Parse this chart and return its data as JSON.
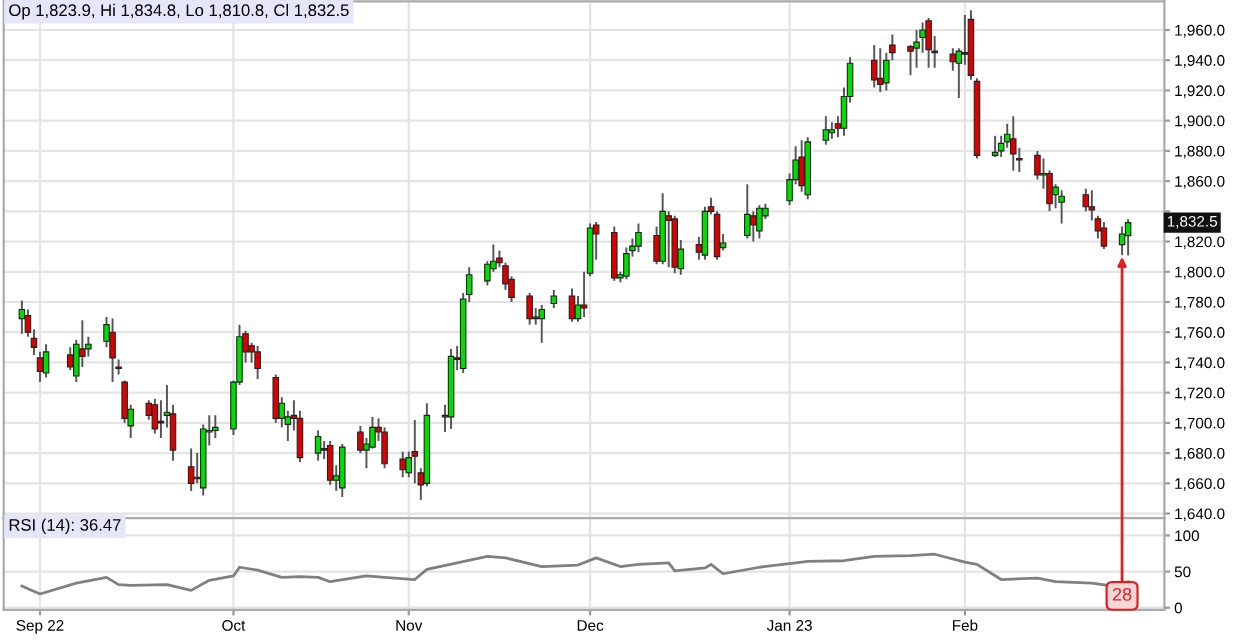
{
  "chart_data": [
    {
      "type": "candlestick",
      "title": "Op 1,823.9, Hi 1,834.8, Lo 1,810.8, Cl 1,832.5",
      "x": [
        "2022-08-29",
        "2022-08-30",
        "2022-08-31",
        "2022-09-01",
        "2022-09-02",
        "2022-09-06",
        "2022-09-07",
        "2022-09-08",
        "2022-09-09",
        "2022-09-12",
        "2022-09-13",
        "2022-09-14",
        "2022-09-15",
        "2022-09-16",
        "2022-09-19",
        "2022-09-20",
        "2022-09-21",
        "2022-09-22",
        "2022-09-23",
        "2022-09-26",
        "2022-09-27",
        "2022-09-28",
        "2022-09-29",
        "2022-09-30",
        "2022-10-03",
        "2022-10-04",
        "2022-10-05",
        "2022-10-06",
        "2022-10-07",
        "2022-10-10",
        "2022-10-11",
        "2022-10-12",
        "2022-10-13",
        "2022-10-14",
        "2022-10-17",
        "2022-10-18",
        "2022-10-19",
        "2022-10-20",
        "2022-10-21",
        "2022-10-24",
        "2022-10-25",
        "2022-10-26",
        "2022-10-27",
        "2022-10-28",
        "2022-10-31",
        "2022-11-01",
        "2022-11-02",
        "2022-11-03",
        "2022-11-04",
        "2022-11-07",
        "2022-11-08",
        "2022-11-09",
        "2022-11-10",
        "2022-11-11",
        "2022-11-14",
        "2022-11-15",
        "2022-11-16",
        "2022-11-17",
        "2022-11-18",
        "2022-11-21",
        "2022-11-22",
        "2022-11-23",
        "2022-11-25",
        "2022-11-28",
        "2022-11-29",
        "2022-11-30",
        "2022-12-01",
        "2022-12-02",
        "2022-12-05",
        "2022-12-06",
        "2022-12-07",
        "2022-12-08",
        "2022-12-09",
        "2022-12-12",
        "2022-12-13",
        "2022-12-14",
        "2022-12-15",
        "2022-12-16",
        "2022-12-19",
        "2022-12-20",
        "2022-12-21",
        "2022-12-22",
        "2022-12-23",
        "2022-12-27",
        "2022-12-28",
        "2022-12-29",
        "2022-12-30",
        "2023-01-03",
        "2023-01-04",
        "2023-01-05",
        "2023-01-06",
        "2023-01-09",
        "2023-01-10",
        "2023-01-11",
        "2023-01-12",
        "2023-01-13",
        "2023-01-17",
        "2023-01-18",
        "2023-01-19",
        "2023-01-20",
        "2023-01-23",
        "2023-01-24",
        "2023-01-25",
        "2023-01-26",
        "2023-01-27",
        "2023-01-30",
        "2023-01-31",
        "2023-02-01",
        "2023-02-02",
        "2023-02-03",
        "2023-02-06",
        "2023-02-07",
        "2023-02-08",
        "2023-02-09",
        "2023-02-10",
        "2023-02-13",
        "2023-02-14",
        "2023-02-15",
        "2023-02-16",
        "2023-02-17",
        "2023-02-21",
        "2023-02-22",
        "2023-02-23",
        "2023-02-24",
        "2023-02-27",
        "2023-02-28"
      ],
      "ohlc": [
        [
          1769,
          1781,
          1759,
          1775
        ],
        [
          1771,
          1775,
          1757,
          1760
        ],
        [
          1756,
          1762,
          1745,
          1750
        ],
        [
          1743,
          1747,
          1727,
          1734
        ],
        [
          1733,
          1752,
          1730,
          1747
        ],
        [
          1745,
          1750,
          1735,
          1737
        ],
        [
          1731,
          1755,
          1727,
          1752
        ],
        [
          1749,
          1768,
          1737,
          1744
        ],
        [
          1749,
          1757,
          1744,
          1752
        ],
        [
          1754,
          1770,
          1750,
          1765
        ],
        [
          1760,
          1769,
          1727,
          1743
        ],
        [
          1737,
          1742,
          1732,
          1736
        ],
        [
          1727,
          1728,
          1700,
          1703
        ],
        [
          1698,
          1712,
          1690,
          1709
        ],
        [
          1713,
          1715,
          1702,
          1705
        ],
        [
          1712,
          1716,
          1693,
          1696
        ],
        [
          1701,
          1715,
          1690,
          1700
        ],
        [
          1705,
          1725,
          1697,
          1707
        ],
        [
          1706,
          1712,
          1675,
          1682
        ],
        [
          1671,
          1683,
          1655,
          1660
        ],
        [
          1664,
          1680,
          1660,
          1663
        ],
        [
          1657,
          1699,
          1652,
          1696
        ],
        [
          1694,
          1705,
          1685,
          1695
        ],
        [
          1695,
          1705,
          1690,
          1697
        ],
        [
          1696,
          1728,
          1692,
          1727
        ],
        [
          1727,
          1765,
          1725,
          1757
        ],
        [
          1759,
          1761,
          1740,
          1747
        ],
        [
          1751,
          1753,
          1740,
          1747
        ],
        [
          1747,
          1751,
          1729,
          1736
        ],
        [
          1730,
          1732,
          1700,
          1703
        ],
        [
          1703,
          1717,
          1697,
          1713
        ],
        [
          1699,
          1708,
          1688,
          1704
        ],
        [
          1705,
          1715,
          1695,
          1703
        ],
        [
          1703,
          1708,
          1674,
          1677
        ],
        [
          1680,
          1695,
          1675,
          1691
        ],
        [
          1683,
          1688,
          1676,
          1682
        ],
        [
          1685,
          1688,
          1659,
          1662
        ],
        [
          1662,
          1672,
          1655,
          1665
        ],
        [
          1657,
          1686,
          1651,
          1684
        ],
        [
          1694,
          1698,
          1680,
          1682
        ],
        [
          1682,
          1690,
          1670,
          1686
        ],
        [
          1684,
          1704,
          1683,
          1697
        ],
        [
          1697,
          1703,
          1688,
          1694
        ],
        [
          1694,
          1697,
          1670,
          1673
        ],
        [
          1676,
          1681,
          1664,
          1669
        ],
        [
          1667,
          1681,
          1664,
          1677
        ],
        [
          1681,
          1702,
          1660,
          1678
        ],
        [
          1667,
          1670,
          1649,
          1659
        ],
        [
          1660,
          1713,
          1658,
          1705
        ],
        [
          1704,
          1712,
          1694,
          1705
        ],
        [
          1704,
          1749,
          1696,
          1744
        ],
        [
          1743,
          1751,
          1735,
          1742
        ],
        [
          1736,
          1786,
          1733,
          1782
        ],
        [
          1785,
          1803,
          1780,
          1798
        ],
        [
          1794,
          1807,
          1791,
          1805
        ],
        [
          1802,
          1818,
          1800,
          1807
        ],
        [
          1809,
          1814,
          1803,
          1806
        ],
        [
          1804,
          1806,
          1788,
          1792
        ],
        [
          1795,
          1797,
          1780,
          1783
        ],
        [
          1784,
          1786,
          1765,
          1769
        ],
        [
          1769,
          1776,
          1765,
          1770
        ],
        [
          1769,
          1778,
          1753,
          1775
        ],
        [
          1779,
          1788,
          1776,
          1784
        ],
        [
          1784,
          1789,
          1767,
          1769
        ],
        [
          1769,
          1784,
          1767,
          1778
        ],
        [
          1778,
          1800,
          1770,
          1776
        ],
        [
          1799,
          1832,
          1797,
          1829
        ],
        [
          1831,
          1833,
          1808,
          1825
        ],
        [
          1826,
          1830,
          1794,
          1796
        ],
        [
          1796,
          1800,
          1793,
          1798
        ],
        [
          1797,
          1816,
          1795,
          1812
        ],
        [
          1814,
          1822,
          1810,
          1817
        ],
        [
          1817,
          1832,
          1813,
          1826
        ],
        [
          1824,
          1830,
          1805,
          1807
        ],
        [
          1807,
          1852,
          1805,
          1840
        ],
        [
          1837,
          1840,
          1803,
          1834
        ],
        [
          1835,
          1837,
          1799,
          1803
        ],
        [
          1802,
          1821,
          1798,
          1815
        ],
        [
          1818,
          1823,
          1808,
          1813
        ],
        [
          1811,
          1843,
          1808,
          1840
        ],
        [
          1843,
          1849,
          1838,
          1840
        ],
        [
          1838,
          1840,
          1808,
          1810
        ],
        [
          1816,
          1825,
          1814,
          1819
        ],
        [
          1824,
          1858,
          1822,
          1838
        ],
        [
          1837,
          1840,
          1820,
          1831
        ],
        [
          1827,
          1844,
          1822,
          1842
        ],
        [
          1837,
          1845,
          1835,
          1842
        ],
        [
          1847,
          1865,
          1844,
          1861
        ],
        [
          1861,
          1883,
          1858,
          1874
        ],
        [
          1876,
          1887,
          1853,
          1857
        ],
        [
          1851,
          1889,
          1848,
          1886
        ],
        [
          1887,
          1903,
          1884,
          1894
        ],
        [
          1892,
          1899,
          1888,
          1894
        ],
        [
          1898,
          1903,
          1889,
          1895
        ],
        [
          1895,
          1922,
          1890,
          1916
        ],
        [
          1916,
          1942,
          1912,
          1938
        ],
        [
          1940,
          1950,
          1922,
          1927
        ],
        [
          1928,
          1948,
          1919,
          1924
        ],
        [
          1925,
          1945,
          1920,
          1940
        ],
        [
          1950,
          1957,
          1940,
          1945
        ],
        [
          1949,
          1950,
          1930,
          1946
        ],
        [
          1948,
          1960,
          1935,
          1952
        ],
        [
          1955,
          1965,
          1945,
          1960
        ],
        [
          1966,
          1968,
          1935,
          1947
        ],
        [
          1946,
          1956,
          1935,
          1945
        ],
        [
          1944,
          1948,
          1933,
          1939
        ],
        [
          1938,
          1948,
          1915,
          1946
        ],
        [
          1945,
          1970,
          1937,
          1944
        ],
        [
          1967,
          1973,
          1927,
          1930
        ],
        [
          1926,
          1928,
          1875,
          1877
        ],
        [
          1877,
          1890,
          1876,
          1879
        ],
        [
          1880,
          1890,
          1876,
          1885
        ],
        [
          1886,
          1898,
          1882,
          1891
        ],
        [
          1888,
          1903,
          1867,
          1878
        ],
        [
          1875,
          1882,
          1866,
          1874
        ],
        [
          1877,
          1880,
          1861,
          1864
        ],
        [
          1864,
          1875,
          1855,
          1865
        ],
        [
          1865,
          1867,
          1840,
          1845
        ],
        [
          1851,
          1858,
          1842,
          1856
        ],
        [
          1846,
          1854,
          1832,
          1850
        ],
        [
          1851,
          1855,
          1840,
          1843
        ],
        [
          1843,
          1854,
          1834,
          1841
        ],
        [
          1835,
          1837,
          1822,
          1827
        ],
        [
          1829,
          1833,
          1815,
          1817
        ],
        [
          1818,
          1830,
          1811,
          1825
        ],
        [
          1823.9,
          1834.8,
          1810.8,
          1832.5
        ]
      ],
      "colors": [
        "#00dd00",
        "#dd0000",
        "#dd0000",
        "#dd0000",
        "#00dd00",
        "#dd0000",
        "#00dd00",
        "#dd0000",
        "#00dd00",
        "#00dd00",
        "#dd0000",
        "#dd0000",
        "#dd0000",
        "#00dd00",
        "#dd0000",
        "#dd0000",
        "#dd0000",
        "#00dd00",
        "#dd0000",
        "#dd0000",
        "#dd0000",
        "#00dd00",
        "#00dd00",
        "#00dd00",
        "#00dd00",
        "#00dd00",
        "#dd0000",
        "#dd0000",
        "#dd0000",
        "#dd0000",
        "#00dd00",
        "#00dd00",
        "#dd0000",
        "#dd0000",
        "#00dd00",
        "#dd0000",
        "#dd0000",
        "#00dd00",
        "#00dd00",
        "#dd0000",
        "#00dd00",
        "#00dd00",
        "#dd0000",
        "#dd0000",
        "#dd0000",
        "#00dd00",
        "#dd0000",
        "#dd0000",
        "#00dd00",
        "#00dd00",
        "#00dd00",
        "#dd0000",
        "#00dd00",
        "#00dd00",
        "#00dd00",
        "#00dd00",
        "#dd0000",
        "#dd0000",
        "#dd0000",
        "#dd0000",
        "#00dd00",
        "#00dd00",
        "#00dd00",
        "#dd0000",
        "#00dd00",
        "#dd0000",
        "#00dd00",
        "#dd0000",
        "#dd0000",
        "#00dd00",
        "#00dd00",
        "#00dd00",
        "#00dd00",
        "#dd0000",
        "#00dd00",
        "#dd0000",
        "#dd0000",
        "#00dd00",
        "#dd0000",
        "#00dd00",
        "#dd0000",
        "#dd0000",
        "#00dd00",
        "#00dd00",
        "#dd0000",
        "#00dd00",
        "#00dd00",
        "#00dd00",
        "#00dd00",
        "#dd0000",
        "#00dd00",
        "#00dd00",
        "#00dd00",
        "#dd0000",
        "#00dd00",
        "#00dd00",
        "#dd0000",
        "#dd0000",
        "#00dd00",
        "#dd0000",
        "#dd0000",
        "#00dd00",
        "#00dd00",
        "#dd0000",
        "#dd0000",
        "#dd0000",
        "#00dd00",
        "#dd0000",
        "#dd0000",
        "#dd0000",
        "#00dd00",
        "#00dd00",
        "#00dd00",
        "#dd0000",
        "#dd0000",
        "#dd0000",
        "#00dd00",
        "#dd0000",
        "#00dd00",
        "#00dd00",
        "#dd0000",
        "#dd0000",
        "#dd0000",
        "#dd0000",
        "#00dd00",
        "#00dd00"
      ],
      "xlim": [
        "2022-08-26",
        "2023-03-06"
      ],
      "xticks": [
        {
          "value": "2022-09-01",
          "label": null
        },
        {
          "value": "2022-10-03",
          "label": null
        },
        {
          "value": "2022-11-01",
          "label": null
        },
        {
          "value": "2022-12-01",
          "label": null
        },
        {
          "value": "2023-01-03",
          "label": null
        },
        {
          "value": "2023-02-01",
          "label": null
        }
      ],
      "ylim": [
        1637,
        1979
      ],
      "yticks": [
        {
          "value": 1640,
          "label": "1,640.0"
        },
        {
          "value": 1660,
          "label": "1,660.0"
        },
        {
          "value": 1680,
          "label": "1,680.0"
        },
        {
          "value": 1700,
          "label": "1,700.0"
        },
        {
          "value": 1720,
          "label": "1,720.0"
        },
        {
          "value": 1740,
          "label": "1,740.0"
        },
        {
          "value": 1760,
          "label": "1,760.0"
        },
        {
          "value": 1780,
          "label": "1,780.0"
        },
        {
          "value": 1800,
          "label": "1,800.0"
        },
        {
          "value": 1820,
          "label": "1,820.0"
        },
        {
          "value": 1840,
          "label": null
        },
        {
          "value": 1860,
          "label": "1,860.0"
        },
        {
          "value": 1880,
          "label": "1,880.0"
        },
        {
          "value": 1900,
          "label": "1,900.0"
        },
        {
          "value": 1920,
          "label": "1,920.0"
        },
        {
          "value": 1940,
          "label": "1,940.0"
        },
        {
          "value": 1960,
          "label": "1,960.0"
        }
      ],
      "tick_labels": "y",
      "grid": true,
      "annotations": [
        "1,832.5"
      ]
    },
    {
      "type": "line",
      "title": "RSI (14): 36.47",
      "x": [
        "2022-08-29",
        "2022-09-01",
        "2022-09-07",
        "2022-09-12",
        "2022-09-14",
        "2022-09-16",
        "2022-09-22",
        "2022-09-26",
        "2022-09-29",
        "2022-10-03",
        "2022-10-04",
        "2022-10-07",
        "2022-10-11",
        "2022-10-14",
        "2022-10-17",
        "2022-10-19",
        "2022-10-25",
        "2022-10-28",
        "2022-11-02",
        "2022-11-04",
        "2022-11-09",
        "2022-11-14",
        "2022-11-17",
        "2022-11-23",
        "2022-11-29",
        "2022-12-02",
        "2022-12-06",
        "2022-12-09",
        "2022-12-14",
        "2022-12-15",
        "2022-12-20",
        "2022-12-21",
        "2022-12-23",
        "2022-12-29",
        "2023-01-04",
        "2023-01-06",
        "2023-01-12",
        "2023-01-17",
        "2023-01-23",
        "2023-01-27",
        "2023-02-01",
        "2023-02-03",
        "2023-02-07",
        "2023-02-13",
        "2023-02-16",
        "2023-02-22",
        "2023-02-27",
        "2023-02-28"
      ],
      "series": [
        {
          "color": "#808080",
          "values": [
            30,
            19,
            34,
            42,
            32,
            31,
            32,
            24,
            38,
            44,
            56,
            52,
            42,
            43,
            42,
            36,
            44,
            42,
            39,
            53,
            62,
            71,
            69,
            57,
            59,
            69,
            57,
            60,
            62,
            51,
            55,
            60,
            47,
            56,
            62,
            64,
            65,
            71,
            72,
            74,
            63,
            60,
            39,
            41,
            36,
            34,
            28,
            36
          ]
        }
      ],
      "xlim": [
        "2022-08-26",
        "2023-03-06"
      ],
      "xticks": [
        {
          "value": "2022-09-01",
          "label": "Sep 22"
        },
        {
          "value": "2022-10-03",
          "label": "Oct"
        },
        {
          "value": "2022-11-01",
          "label": "Nov"
        },
        {
          "value": "2022-12-01",
          "label": "Dec"
        },
        {
          "value": "2023-01-03",
          "label": "Jan 23"
        },
        {
          "value": "2023-02-01",
          "label": "Feb"
        }
      ],
      "ylim": [
        -3,
        124
      ],
      "yticks": [
        0,
        50,
        100
      ],
      "grid": true,
      "annotations": [
        {
          "text": "28",
          "x": "2023-02-27",
          "y": 28
        }
      ]
    }
  ]
}
